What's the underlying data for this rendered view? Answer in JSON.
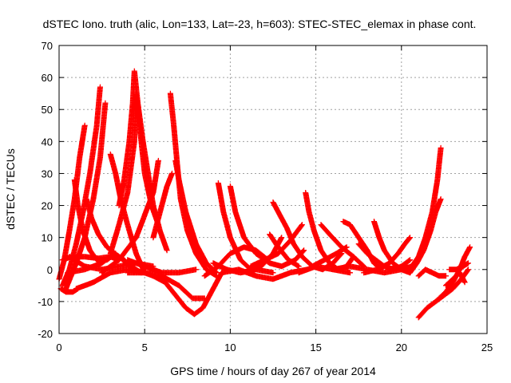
{
  "chart_data": {
    "type": "scatter",
    "title": "dSTEC Iono. truth (alic, Lon=133, Lat=-23, h=603): STEC-STEC_elemax in phase cont.",
    "xlabel": "GPS time / hours of day 267 of year 2014",
    "ylabel": "dSTEC  / TECUs",
    "xlim": [
      0,
      25
    ],
    "ylim": [
      -20,
      70
    ],
    "x_ticks": [
      0,
      5,
      10,
      15,
      20,
      25
    ],
    "y_ticks": [
      -20,
      -10,
      0,
      10,
      20,
      30,
      40,
      50,
      60,
      70
    ],
    "x_tick_labels": [
      "0",
      "5",
      "10",
      "15",
      "20",
      "25"
    ],
    "y_tick_labels": [
      "-20",
      "-10",
      "0",
      "10",
      "20",
      "30",
      "40",
      "50",
      "60",
      "70"
    ],
    "grid": true,
    "marker": "+",
    "color": "#ff0000",
    "series": [
      {
        "name": "s1",
        "points": [
          [
            0,
            -3
          ],
          [
            0.3,
            3
          ],
          [
            0.6,
            12
          ],
          [
            0.9,
            22
          ],
          [
            1.2,
            35
          ],
          [
            1.5,
            45
          ]
        ]
      },
      {
        "name": "s2",
        "points": [
          [
            0.2,
            -5
          ],
          [
            0.6,
            0
          ],
          [
            1.0,
            8
          ],
          [
            1.4,
            18
          ],
          [
            1.8,
            30
          ],
          [
            2.2,
            45
          ],
          [
            2.4,
            57
          ]
        ]
      },
      {
        "name": "s3",
        "points": [
          [
            0.4,
            -6
          ],
          [
            1.0,
            2
          ],
          [
            1.5,
            10
          ],
          [
            2.0,
            22
          ],
          [
            2.4,
            35
          ],
          [
            2.7,
            52
          ]
        ]
      },
      {
        "name": "s4",
        "points": [
          [
            0.1,
            -6
          ],
          [
            0.4,
            -7
          ],
          [
            0.8,
            -7
          ],
          [
            1.1,
            -6
          ]
        ]
      },
      {
        "name": "s5",
        "points": [
          [
            0.9,
            28
          ],
          [
            1.1,
            20
          ],
          [
            1.4,
            12
          ],
          [
            1.8,
            6
          ],
          [
            2.2,
            3
          ],
          [
            2.8,
            3
          ],
          [
            3.3,
            5
          ]
        ]
      },
      {
        "name": "s6",
        "points": [
          [
            0.2,
            3
          ],
          [
            0.7,
            4
          ],
          [
            1.5,
            4
          ],
          [
            2.3,
            3.5
          ],
          [
            3.0,
            4
          ],
          [
            3.5,
            3
          ]
        ]
      },
      {
        "name": "s7",
        "points": [
          [
            0.5,
            -1
          ],
          [
            1.5,
            0
          ],
          [
            2.5,
            2
          ],
          [
            3.2,
            5
          ],
          [
            3.8,
            3
          ],
          [
            4.3,
            0
          ]
        ]
      },
      {
        "name": "s8",
        "points": [
          [
            1.6,
            22
          ],
          [
            1.9,
            16
          ],
          [
            2.3,
            11
          ],
          [
            2.8,
            7
          ],
          [
            3.5,
            4
          ],
          [
            4.2,
            1
          ],
          [
            4.8,
            -1
          ]
        ]
      },
      {
        "name": "s9",
        "points": [
          [
            1.0,
            -6
          ],
          [
            2.0,
            -4
          ],
          [
            3.0,
            -1
          ],
          [
            4.0,
            0
          ],
          [
            5.0,
            -1
          ]
        ]
      },
      {
        "name": "s10",
        "points": [
          [
            3.0,
            36
          ],
          [
            3.3,
            30
          ],
          [
            3.6,
            22
          ],
          [
            4.0,
            14
          ],
          [
            4.5,
            5
          ],
          [
            5.0,
            -1
          ],
          [
            5.5,
            -2
          ]
        ]
      },
      {
        "name": "s11",
        "points": [
          [
            3.5,
            20
          ],
          [
            3.8,
            28
          ],
          [
            4.1,
            40
          ],
          [
            4.3,
            52
          ],
          [
            4.4,
            62
          ],
          [
            4.6,
            52
          ],
          [
            4.9,
            40
          ],
          [
            5.2,
            30
          ],
          [
            5.5,
            20
          ],
          [
            5.9,
            12
          ],
          [
            6.3,
            6
          ]
        ]
      },
      {
        "name": "s12",
        "points": [
          [
            3.0,
            5
          ],
          [
            3.5,
            14
          ],
          [
            4.0,
            24
          ],
          [
            4.4,
            40
          ],
          [
            4.5,
            55
          ],
          [
            4.7,
            45
          ],
          [
            5.0,
            30
          ],
          [
            5.4,
            20
          ],
          [
            5.8,
            14
          ]
        ]
      },
      {
        "name": "s13",
        "points": [
          [
            2.5,
            -1
          ],
          [
            3.5,
            3
          ],
          [
            4.5,
            10
          ],
          [
            5.5,
            24
          ],
          [
            5.8,
            34
          ]
        ]
      },
      {
        "name": "s14",
        "points": [
          [
            0.6,
            4
          ],
          [
            1.5,
            1
          ],
          [
            2.5,
            0
          ],
          [
            3.5,
            1
          ],
          [
            4.5,
            2
          ],
          [
            5.5,
            1
          ]
        ]
      },
      {
        "name": "s15",
        "points": [
          [
            4.0,
            -1
          ],
          [
            5.0,
            -1
          ],
          [
            6.0,
            -2
          ],
          [
            7.0,
            -5
          ],
          [
            7.8,
            -9
          ],
          [
            8.5,
            -9
          ]
        ]
      },
      {
        "name": "s16",
        "points": [
          [
            5.5,
            -2
          ],
          [
            6.2,
            -4
          ],
          [
            6.8,
            -8
          ],
          [
            7.4,
            -12
          ],
          [
            7.9,
            -14
          ],
          [
            8.4,
            -12
          ],
          [
            9.0,
            -6
          ],
          [
            9.5,
            -1
          ]
        ]
      },
      {
        "name": "s17",
        "points": [
          [
            6.5,
            55
          ],
          [
            6.7,
            45
          ],
          [
            6.9,
            33
          ],
          [
            7.1,
            22
          ],
          [
            7.5,
            12
          ],
          [
            8.0,
            5
          ],
          [
            8.6,
            0
          ],
          [
            9.2,
            -2
          ]
        ]
      },
      {
        "name": "s18",
        "points": [
          [
            6.8,
            34
          ],
          [
            7.0,
            28
          ],
          [
            7.4,
            18
          ],
          [
            8.0,
            8
          ],
          [
            8.6,
            2
          ],
          [
            9.2,
            -1
          ]
        ]
      },
      {
        "name": "s19",
        "points": [
          [
            4.0,
            3
          ],
          [
            5.0,
            1
          ],
          [
            6.0,
            -1
          ],
          [
            7.0,
            -1
          ],
          [
            8.0,
            0
          ]
        ]
      },
      {
        "name": "s20",
        "points": [
          [
            5.5,
            10
          ],
          [
            6.0,
            20
          ],
          [
            6.3,
            26
          ],
          [
            6.6,
            30
          ]
        ]
      },
      {
        "name": "s21",
        "points": [
          [
            9.3,
            27
          ],
          [
            9.6,
            18
          ],
          [
            10.0,
            10
          ],
          [
            10.6,
            3
          ],
          [
            11.2,
            0
          ],
          [
            11.8,
            1
          ],
          [
            12.5,
            5
          ],
          [
            13.0,
            10
          ]
        ]
      },
      {
        "name": "s22",
        "points": [
          [
            10.0,
            26
          ],
          [
            10.3,
            18
          ],
          [
            10.8,
            10
          ],
          [
            11.5,
            5
          ],
          [
            12.3,
            2
          ],
          [
            13.0,
            1
          ],
          [
            13.8,
            3
          ],
          [
            14.3,
            6
          ]
        ]
      },
      {
        "name": "s23",
        "points": [
          [
            8.5,
            -2
          ],
          [
            9.3,
            1
          ],
          [
            10.0,
            5
          ],
          [
            10.8,
            7
          ],
          [
            11.5,
            6
          ],
          [
            12.2,
            3
          ]
        ]
      },
      {
        "name": "s24",
        "points": [
          [
            9.0,
            2
          ],
          [
            9.8,
            0
          ],
          [
            10.6,
            -1
          ],
          [
            11.5,
            0
          ],
          [
            12.5,
            -1
          ]
        ]
      },
      {
        "name": "s25",
        "points": [
          [
            9.5,
            -1
          ],
          [
            10.5,
            0
          ],
          [
            11.5,
            -2
          ],
          [
            12.5,
            -3
          ],
          [
            13.5,
            -1
          ],
          [
            14.5,
            0
          ]
        ]
      },
      {
        "name": "s26",
        "points": [
          [
            12.5,
            21
          ],
          [
            12.9,
            17
          ],
          [
            13.3,
            13
          ],
          [
            13.7,
            8
          ],
          [
            14.2,
            4
          ],
          [
            14.8,
            1
          ],
          [
            15.4,
            0
          ],
          [
            16.0,
            2
          ],
          [
            16.5,
            5
          ]
        ]
      },
      {
        "name": "s27",
        "points": [
          [
            12.3,
            11
          ],
          [
            12.8,
            7
          ],
          [
            13.4,
            3
          ],
          [
            14.0,
            1
          ]
        ]
      },
      {
        "name": "s28",
        "points": [
          [
            11.2,
            1
          ],
          [
            12.0,
            3
          ],
          [
            12.8,
            5
          ],
          [
            13.5,
            9
          ],
          [
            14.2,
            14
          ]
        ]
      },
      {
        "name": "s29",
        "points": [
          [
            14.4,
            24
          ],
          [
            14.6,
            18
          ],
          [
            14.9,
            12
          ],
          [
            15.3,
            6
          ],
          [
            15.8,
            2
          ],
          [
            16.3,
            0
          ],
          [
            16.8,
            1
          ],
          [
            17.2,
            4
          ]
        ]
      },
      {
        "name": "s30",
        "points": [
          [
            14.8,
            1
          ],
          [
            15.5,
            3
          ],
          [
            16.2,
            5
          ],
          [
            16.8,
            7
          ]
        ]
      },
      {
        "name": "s31",
        "points": [
          [
            14.0,
            -1
          ],
          [
            15.0,
            1
          ],
          [
            16.0,
            0
          ],
          [
            17.0,
            -1
          ]
        ]
      },
      {
        "name": "s32",
        "points": [
          [
            15.3,
            14
          ],
          [
            15.8,
            11
          ],
          [
            16.5,
            7
          ],
          [
            17.2,
            4
          ],
          [
            17.8,
            1
          ]
        ]
      },
      {
        "name": "s33",
        "points": [
          [
            16.0,
            0
          ],
          [
            17.0,
            1
          ],
          [
            18.0,
            0
          ],
          [
            19.0,
            -1
          ],
          [
            20.0,
            0
          ],
          [
            20.6,
            1
          ]
        ]
      },
      {
        "name": "s34",
        "points": [
          [
            16.6,
            15
          ],
          [
            17.0,
            14
          ],
          [
            17.5,
            10
          ],
          [
            18.0,
            6
          ],
          [
            18.4,
            2
          ],
          [
            18.8,
            0
          ]
        ]
      },
      {
        "name": "s35",
        "points": [
          [
            17.5,
            8
          ],
          [
            18.0,
            5
          ],
          [
            18.5,
            3
          ],
          [
            19.0,
            1
          ],
          [
            19.5,
            0
          ],
          [
            20.0,
            1
          ],
          [
            20.5,
            3
          ]
        ]
      },
      {
        "name": "s36",
        "points": [
          [
            18.4,
            15
          ],
          [
            18.7,
            10
          ],
          [
            19.0,
            6
          ],
          [
            19.5,
            2
          ],
          [
            20.0,
            0
          ],
          [
            20.5,
            -1
          ]
        ]
      },
      {
        "name": "s37",
        "points": [
          [
            17.8,
            -1
          ],
          [
            18.6,
            0
          ],
          [
            19.3,
            2
          ],
          [
            19.8,
            5
          ],
          [
            20.2,
            8
          ],
          [
            20.5,
            10
          ]
        ]
      },
      {
        "name": "s38",
        "points": [
          [
            19.5,
            1
          ],
          [
            20.0,
            0
          ],
          [
            20.6,
            1
          ],
          [
            21.0,
            4
          ],
          [
            21.4,
            10
          ],
          [
            21.8,
            18
          ],
          [
            22.1,
            28
          ],
          [
            22.3,
            38
          ]
        ]
      },
      {
        "name": "s39",
        "points": [
          [
            20.5,
            -1
          ],
          [
            20.9,
            2
          ],
          [
            21.3,
            6
          ],
          [
            21.7,
            12
          ],
          [
            22.0,
            18
          ],
          [
            22.3,
            22
          ]
        ]
      },
      {
        "name": "s40",
        "points": [
          [
            21.0,
            -15
          ],
          [
            21.5,
            -12
          ],
          [
            22.0,
            -10
          ],
          [
            22.5,
            -8
          ],
          [
            23.0,
            -6
          ],
          [
            23.5,
            -3
          ],
          [
            23.9,
            0
          ]
        ]
      },
      {
        "name": "s41",
        "points": [
          [
            21.0,
            -2
          ],
          [
            21.4,
            0
          ],
          [
            21.8,
            -1
          ],
          [
            22.2,
            -2
          ],
          [
            22.6,
            -2
          ]
        ]
      },
      {
        "name": "s42",
        "points": [
          [
            22.2,
            -9
          ],
          [
            22.6,
            -7
          ],
          [
            23.0,
            -4
          ],
          [
            23.4,
            0
          ],
          [
            23.7,
            4
          ],
          [
            24.0,
            7
          ]
        ]
      },
      {
        "name": "s43",
        "points": [
          [
            22.8,
            0
          ],
          [
            23.2,
            0
          ],
          [
            23.6,
            1
          ],
          [
            23.9,
            2
          ]
        ]
      },
      {
        "name": "s44",
        "points": [
          [
            22.6,
            -5
          ],
          [
            23.0,
            -3
          ],
          [
            23.4,
            -1
          ],
          [
            23.7,
            -4
          ]
        ]
      }
    ]
  }
}
